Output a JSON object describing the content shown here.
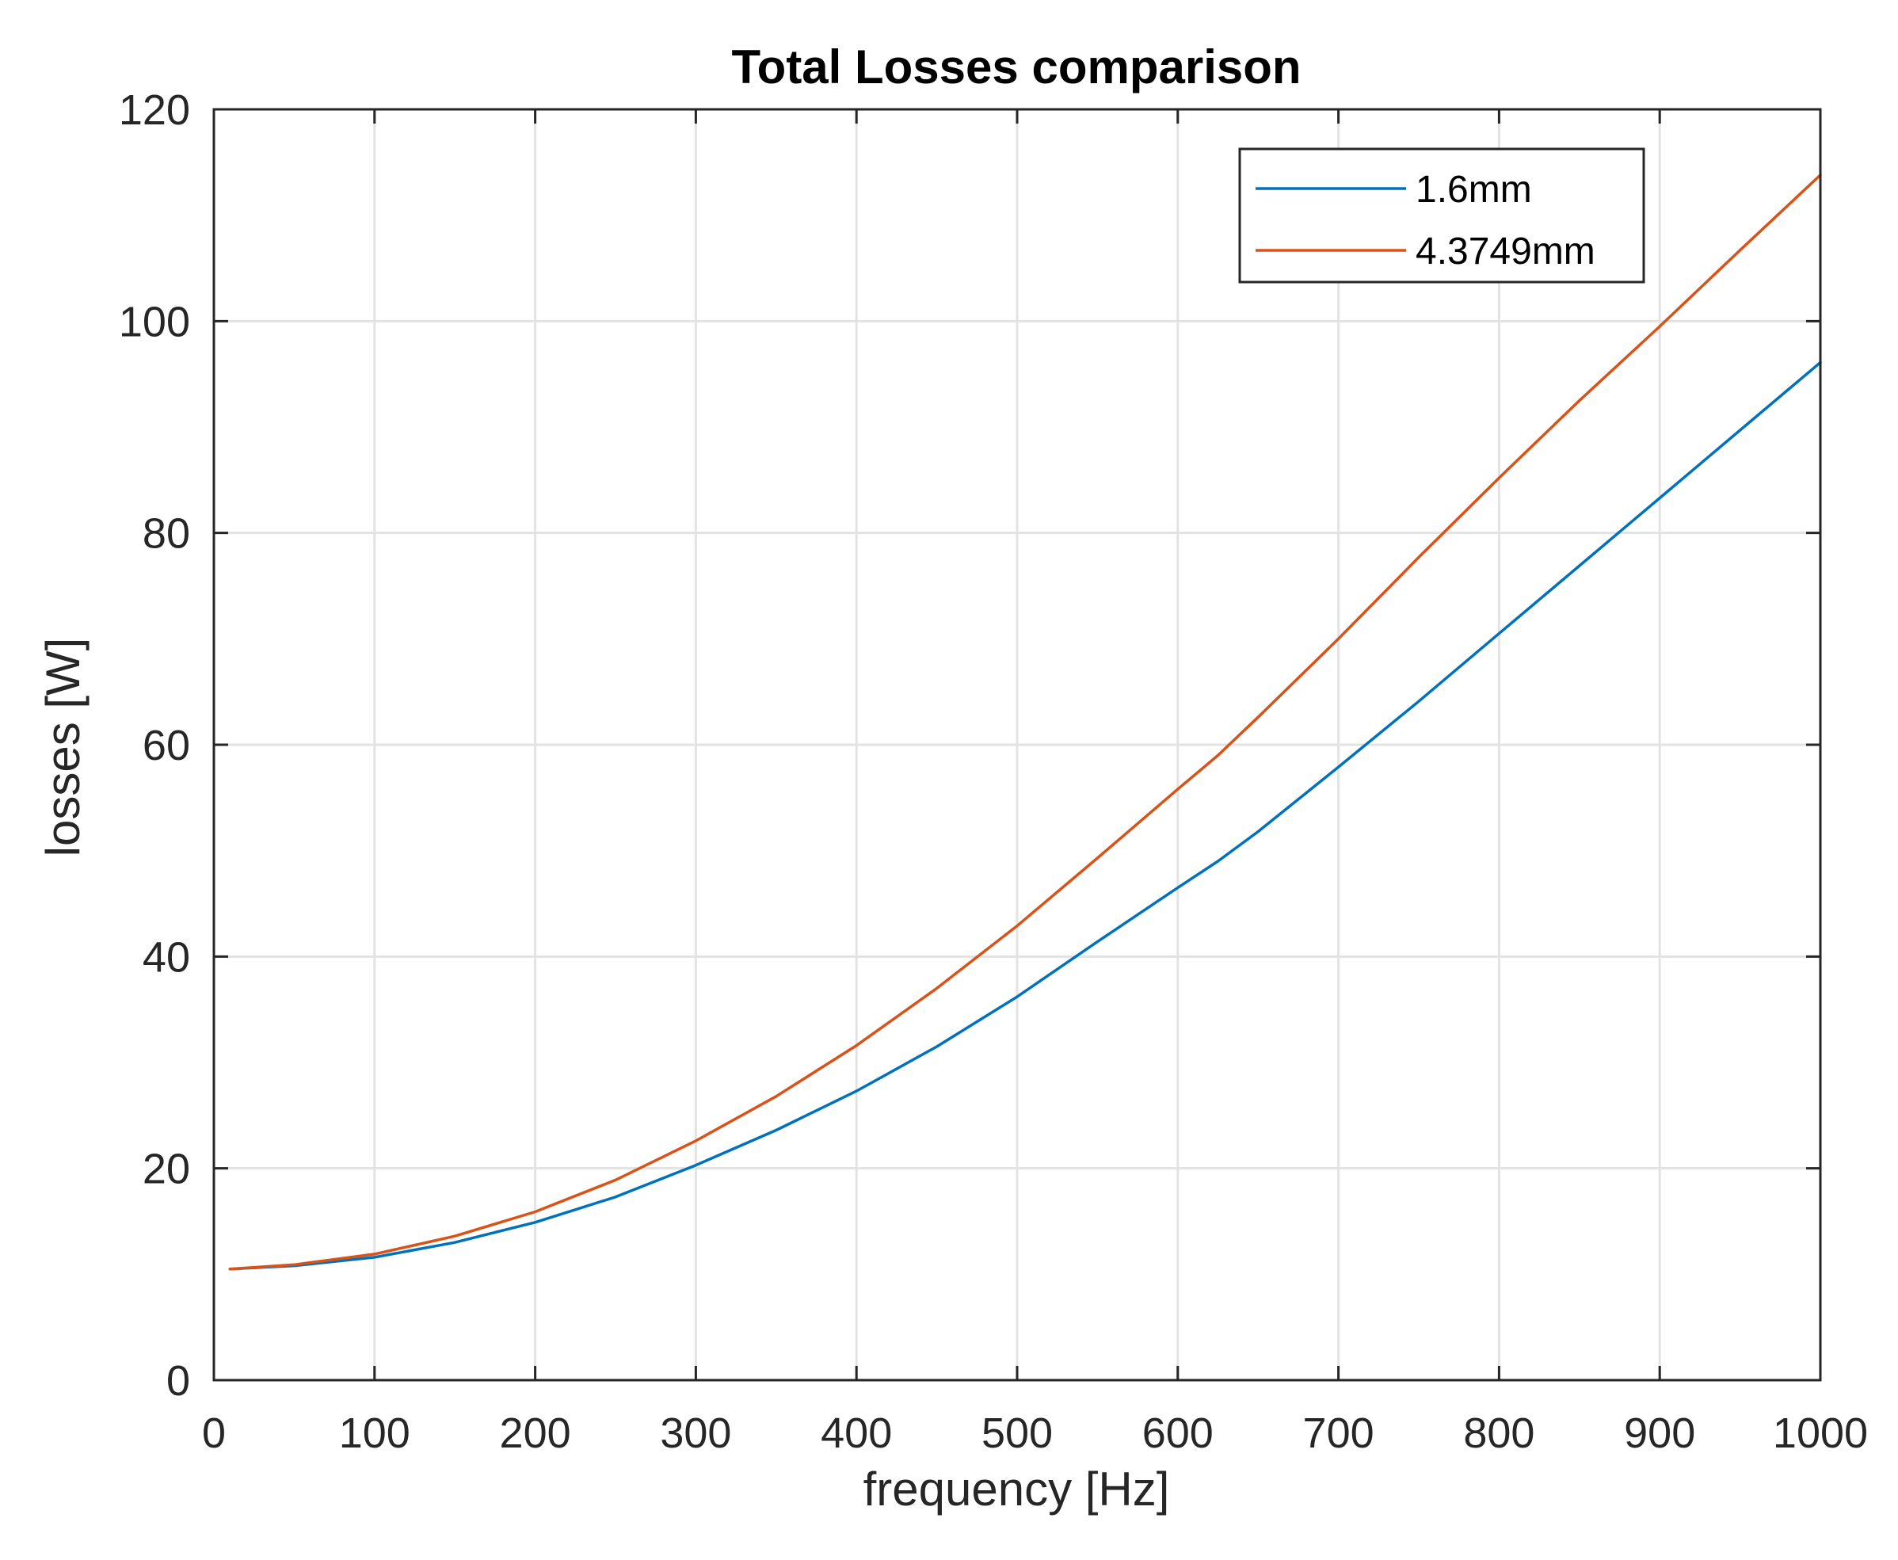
{
  "chart_data": {
    "type": "line",
    "title": "Total Losses comparison",
    "xlabel": "frequency [Hz]",
    "ylabel": "losses [W]",
    "xlim": [
      0,
      1000
    ],
    "ylim": [
      0,
      120
    ],
    "xticks": [
      "0",
      "100",
      "200",
      "300",
      "400",
      "500",
      "600",
      "700",
      "800",
      "900",
      "1000"
    ],
    "yticks": [
      "0",
      "20",
      "40",
      "60",
      "80",
      "100",
      "120"
    ],
    "grid": true,
    "legend_position": "top-right",
    "x": [
      10,
      50,
      100,
      150,
      200,
      250,
      300,
      350,
      400,
      450,
      500,
      550,
      600,
      625,
      650,
      700,
      750,
      800,
      850,
      900,
      950,
      1000
    ],
    "series": [
      {
        "name": "1.6mm",
        "color": "#0072BD",
        "values": [
          10.5,
          10.8,
          11.6,
          13.0,
          14.9,
          17.3,
          20.3,
          23.6,
          27.3,
          31.5,
          36.2,
          41.4,
          46.5,
          49.0,
          51.8,
          57.9,
          64.1,
          70.5,
          76.9,
          83.3,
          89.7,
          96.1
        ]
      },
      {
        "name": "4.3749mm",
        "color": "#D95319",
        "values": [
          10.5,
          10.9,
          11.9,
          13.6,
          15.9,
          18.9,
          22.6,
          26.8,
          31.6,
          37.0,
          42.9,
          49.3,
          55.8,
          59.0,
          62.6,
          70.0,
          77.7,
          85.2,
          92.5,
          99.5,
          106.7,
          113.8
        ]
      }
    ]
  }
}
